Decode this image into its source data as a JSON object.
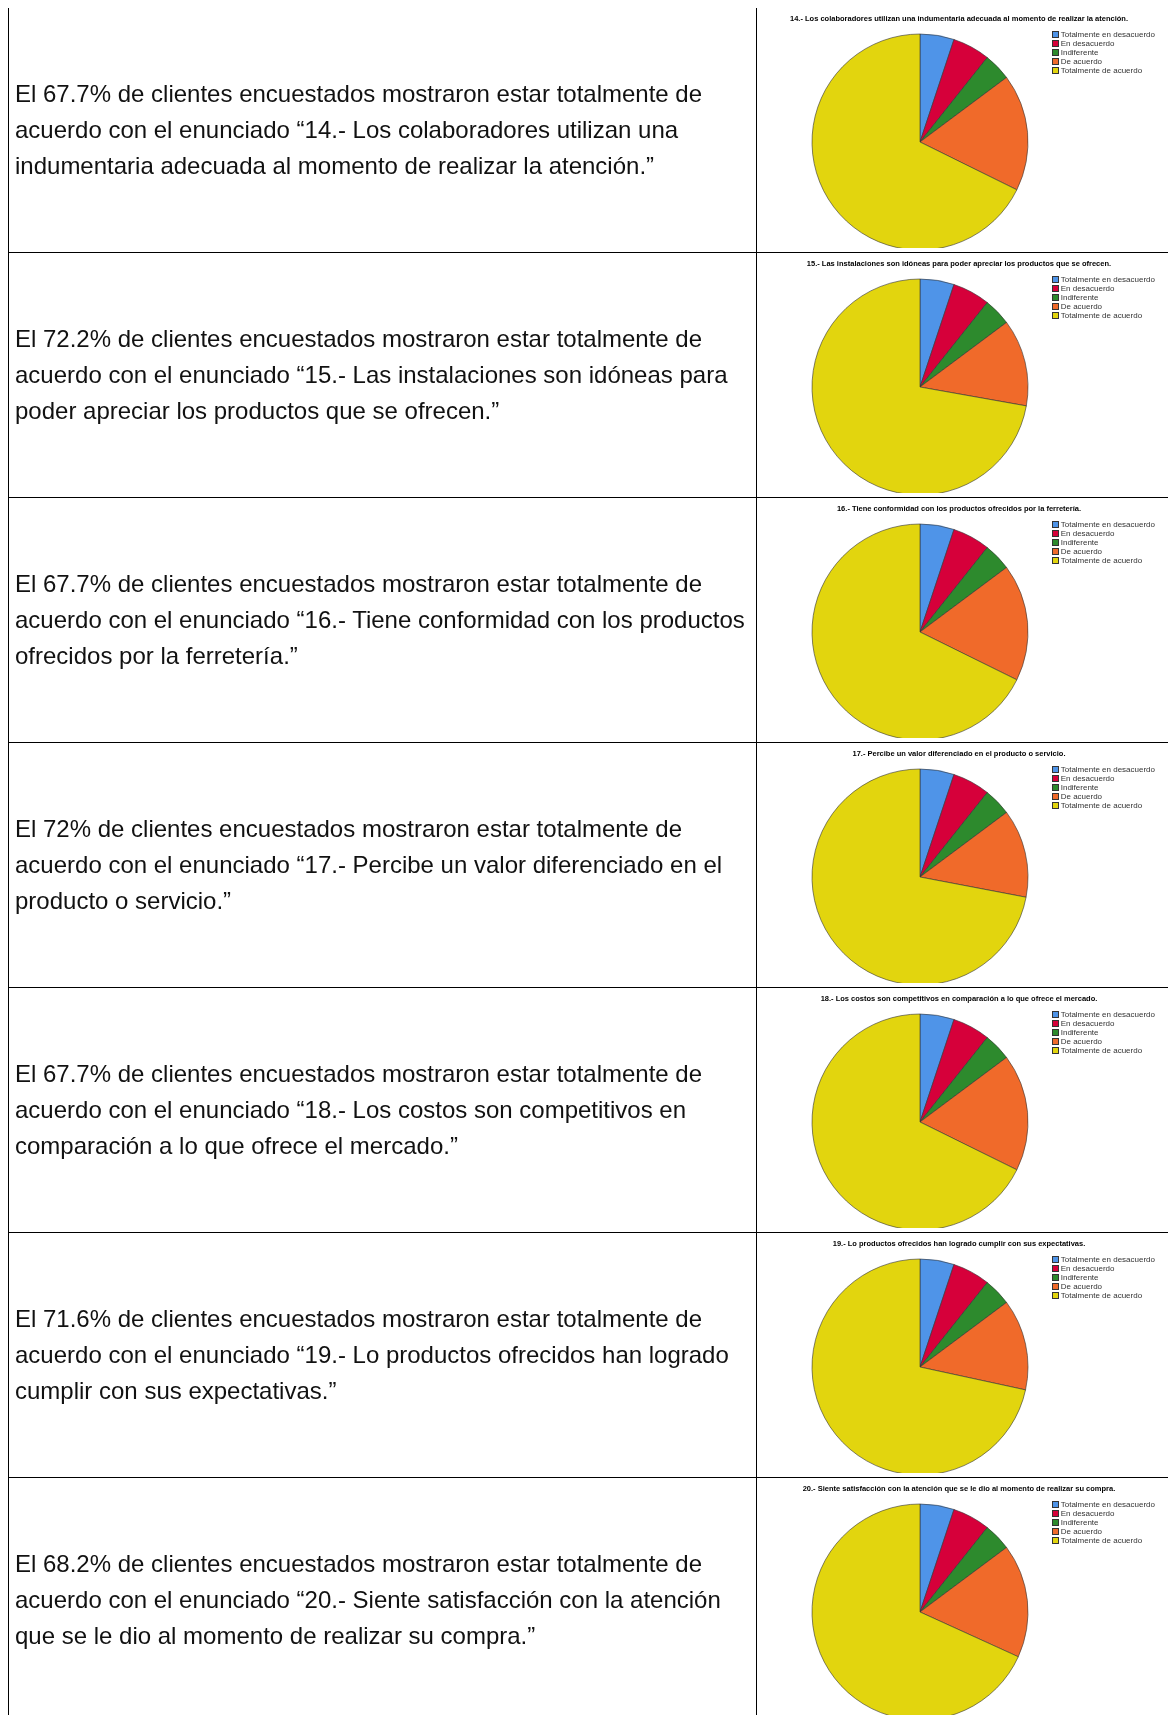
{
  "chart_data": [
    {
      "type": "pie",
      "title": "14.- Los colaboradores utilizan una indumentaria adecuada al momento de realizar la atención.",
      "categories": [
        "Totalmente en desacuerdo",
        "En desacuerdo",
        "Indiferente",
        "De acuerdo",
        "Totalmente de acuerdo"
      ],
      "values": [
        5.1,
        5.6,
        4.1,
        17.5,
        67.7
      ],
      "colors": [
        "#4f94e8",
        "#d6003a",
        "#2d8a2d",
        "#f06a2a",
        "#e2d50e"
      ],
      "legend": "top right",
      "annotations": [
        "El 67.7% de clientes encuestados mostraron estar totalmente de acuerdo con el enunciado “14.- Los colaboradores utilizan una indumentaria adecuada al momento de realizar la atención.”"
      ]
    },
    {
      "type": "pie",
      "title": "15.- Las instalaciones son idóneas para poder apreciar los productos que se ofrecen.",
      "categories": [
        "Totalmente en desacuerdo",
        "En desacuerdo",
        "Indiferente",
        "De acuerdo",
        "Totalmente de acuerdo"
      ],
      "values": [
        5.1,
        5.6,
        4.1,
        13.0,
        72.2
      ],
      "colors": [
        "#4f94e8",
        "#d6003a",
        "#2d8a2d",
        "#f06a2a",
        "#e2d50e"
      ],
      "legend": "top right",
      "annotations": [
        "El 72.2% de clientes encuestados mostraron estar totalmente de acuerdo con el enunciado “15.- Las instalaciones son idóneas para poder apreciar los productos que se ofrecen.”"
      ]
    },
    {
      "type": "pie",
      "title": "16.- Tiene conformidad con los productos ofrecidos por la ferretería.",
      "categories": [
        "Totalmente en desacuerdo",
        "En desacuerdo",
        "Indiferente",
        "De acuerdo",
        "Totalmente de acuerdo"
      ],
      "values": [
        5.1,
        5.6,
        4.1,
        17.5,
        67.7
      ],
      "colors": [
        "#4f94e8",
        "#d6003a",
        "#2d8a2d",
        "#f06a2a",
        "#e2d50e"
      ],
      "legend": "top right",
      "annotations": [
        "El 67.7% de clientes encuestados mostraron estar totalmente de acuerdo con el enunciado “16.- Tiene conformidad con los productos ofrecidos por la ferretería.”"
      ]
    },
    {
      "type": "pie",
      "title": "17.- Percibe un valor diferenciado en el producto o servicio.",
      "categories": [
        "Totalmente en desacuerdo",
        "En desacuerdo",
        "Indiferente",
        "De acuerdo",
        "Totalmente de acuerdo"
      ],
      "values": [
        5.1,
        5.6,
        4.1,
        13.2,
        72
      ],
      "colors": [
        "#4f94e8",
        "#d6003a",
        "#2d8a2d",
        "#f06a2a",
        "#e2d50e"
      ],
      "legend": "top right",
      "annotations": [
        "El 72% de clientes encuestados mostraron estar totalmente de acuerdo con el enunciado “17.- Percibe un valor diferenciado en el producto o servicio.”"
      ]
    },
    {
      "type": "pie",
      "title": "18.- Los costos son competitivos en comparación a lo que ofrece el mercado.",
      "categories": [
        "Totalmente en desacuerdo",
        "En desacuerdo",
        "Indiferente",
        "De acuerdo",
        "Totalmente de acuerdo"
      ],
      "values": [
        5.1,
        5.6,
        4.1,
        17.5,
        67.7
      ],
      "colors": [
        "#4f94e8",
        "#d6003a",
        "#2d8a2d",
        "#f06a2a",
        "#e2d50e"
      ],
      "legend": "top right",
      "annotations": [
        "El 67.7% de clientes encuestados mostraron estar totalmente de acuerdo con el enunciado “18.- Los costos son competitivos en comparación a lo que ofrece el mercado.”"
      ]
    },
    {
      "type": "pie",
      "title": "19.- Lo productos ofrecidos han logrado cumplir con sus expectativas.",
      "categories": [
        "Totalmente en desacuerdo",
        "En desacuerdo",
        "Indiferente",
        "De acuerdo",
        "Totalmente de acuerdo"
      ],
      "values": [
        5.1,
        5.6,
        4.1,
        13.6,
        71.6
      ],
      "colors": [
        "#4f94e8",
        "#d6003a",
        "#2d8a2d",
        "#f06a2a",
        "#e2d50e"
      ],
      "legend": "top right",
      "annotations": [
        "El 71.6% de clientes encuestados mostraron estar totalmente de acuerdo con el enunciado “19.- Lo productos ofrecidos han logrado cumplir con sus expectativas.”"
      ]
    },
    {
      "type": "pie",
      "title": "20.- Siente satisfacción con la atención que se le dio al momento de realizar su compra.",
      "categories": [
        "Totalmente en desacuerdo",
        "En desacuerdo",
        "Indiferente",
        "De acuerdo",
        "Totalmente de acuerdo"
      ],
      "values": [
        5.1,
        5.6,
        4.1,
        17.0,
        68.2
      ],
      "colors": [
        "#4f94e8",
        "#d6003a",
        "#2d8a2d",
        "#f06a2a",
        "#e2d50e"
      ],
      "legend": "top right",
      "annotations": [
        "El 68.2% de clientes encuestados mostraron estar totalmente de acuerdo con el enunciado “20.- Siente satisfacción con la atención que se le dio al momento de realizar su compra.”"
      ]
    }
  ]
}
